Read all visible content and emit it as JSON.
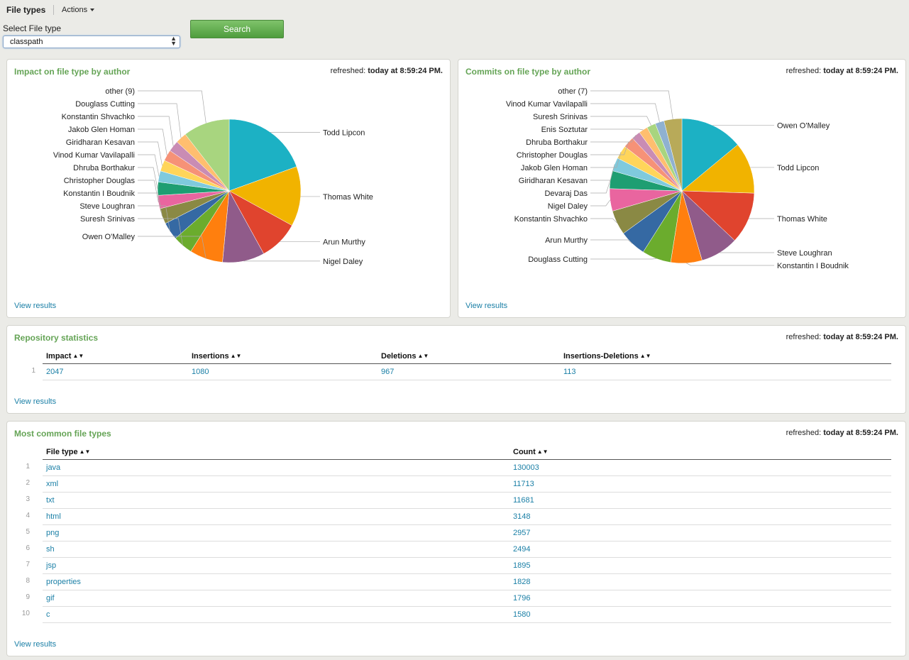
{
  "header": {
    "title": "File types",
    "actions_label": "Actions"
  },
  "filter": {
    "label": "Select File type",
    "selected": "classpath",
    "search_label": "Search"
  },
  "colors": {
    "palette": [
      "#1cb1c4",
      "#f1b300",
      "#e0442e",
      "#905b8a",
      "#ff7f0e",
      "#6bac2d",
      "#3569a3",
      "#8a8944",
      "#e9659f",
      "#1e9e72",
      "#7fcadd",
      "#ffd55a",
      "#f69277",
      "#c98cb4",
      "#ffbe6f",
      "#a8d57f",
      "#8fb1d0",
      "#b8aa59",
      "#f9aec8",
      "#58c2a1"
    ],
    "accent_green": "#65a456",
    "link": "#1a7fa6"
  },
  "impact_panel": {
    "title": "Impact on file type by author",
    "refreshed_prefix": "refreshed:",
    "refreshed_time": "today at 8:59:24 PM.",
    "view_results": "View results",
    "chart_data": {
      "type": "pie",
      "title": "Impact on file type by author",
      "slices": [
        {
          "label": "Todd Lipcon",
          "value": 19.5
        },
        {
          "label": "Thomas White",
          "value": 13.5
        },
        {
          "label": "Arun Murthy",
          "value": 9.0
        },
        {
          "label": "Nigel Daley",
          "value": 9.5
        },
        {
          "label": "Owen O'Malley",
          "value": 7.5
        },
        {
          "label": "Suresh Srinivas",
          "value": 4.5
        },
        {
          "label": "Steve Loughran",
          "value": 4.0
        },
        {
          "label": "Konstantin I Boudnik",
          "value": 3.5
        },
        {
          "label": "Christopher Douglas",
          "value": 3.0
        },
        {
          "label": "Dhruba Borthakur",
          "value": 3.0
        },
        {
          "label": "Vinod Kumar Vavilapalli",
          "value": 2.5
        },
        {
          "label": "Giridharan Kesavan",
          "value": 2.5
        },
        {
          "label": "Jakob Glen Homan",
          "value": 2.5
        },
        {
          "label": "Konstantin Shvachko",
          "value": 2.5
        },
        {
          "label": "Douglass Cutting",
          "value": 2.5
        },
        {
          "label": "other (9)",
          "value": 10.5
        }
      ]
    }
  },
  "commits_panel": {
    "title": "Commits on file type by author",
    "refreshed_prefix": "refreshed:",
    "refreshed_time": "today at 8:59:24 PM.",
    "view_results": "View results",
    "chart_data": {
      "type": "pie",
      "title": "Commits on file type by author",
      "slices": [
        {
          "label": "Owen O'Malley",
          "value": 14.0
        },
        {
          "label": "Todd Lipcon",
          "value": 11.5
        },
        {
          "label": "Thomas White",
          "value": 11.5
        },
        {
          "label": "Steve Loughran",
          "value": 8.5
        },
        {
          "label": "Konstantin I Boudnik",
          "value": 7.0
        },
        {
          "label": "Douglass Cutting",
          "value": 6.5
        },
        {
          "label": "Arun Murthy",
          "value": 6.0
        },
        {
          "label": "Konstantin Shvachko",
          "value": 5.5
        },
        {
          "label": "Nigel Daley",
          "value": 5.0
        },
        {
          "label": "Devaraj Das",
          "value": 4.0
        },
        {
          "label": "Giridharan Kesavan",
          "value": 3.0
        },
        {
          "label": "Jakob Glen Homan",
          "value": 3.0
        },
        {
          "label": "Christopher Douglas",
          "value": 2.5
        },
        {
          "label": "Dhruba Borthakur",
          "value": 2.0
        },
        {
          "label": "Enis Soztutar",
          "value": 2.0
        },
        {
          "label": "Suresh Srinivas",
          "value": 2.0
        },
        {
          "label": "Vinod Kumar Vavilapalli",
          "value": 2.0
        },
        {
          "label": "other (7)",
          "value": 4.0
        }
      ]
    }
  },
  "repo_stats": {
    "title": "Repository statistics",
    "refreshed_prefix": "refreshed:",
    "refreshed_time": "today at 8:59:24 PM.",
    "view_results": "View results",
    "columns": [
      "Impact",
      "Insertions",
      "Deletions",
      "Insertions-Deletions"
    ],
    "rows": [
      {
        "num": "1",
        "cells": [
          "2047",
          "1080",
          "967",
          "113"
        ]
      }
    ]
  },
  "file_types": {
    "title": "Most common file types",
    "refreshed_prefix": "refreshed:",
    "refreshed_time": "today at 8:59:24 PM.",
    "view_results": "View results",
    "columns": [
      "File type",
      "Count"
    ],
    "rows": [
      {
        "num": "1",
        "cells": [
          "java",
          "130003"
        ]
      },
      {
        "num": "2",
        "cells": [
          "xml",
          "11713"
        ]
      },
      {
        "num": "3",
        "cells": [
          "txt",
          "11681"
        ]
      },
      {
        "num": "4",
        "cells": [
          "html",
          "3148"
        ]
      },
      {
        "num": "5",
        "cells": [
          "png",
          "2957"
        ]
      },
      {
        "num": "6",
        "cells": [
          "sh",
          "2494"
        ]
      },
      {
        "num": "7",
        "cells": [
          "jsp",
          "1895"
        ]
      },
      {
        "num": "8",
        "cells": [
          "properties",
          "1828"
        ]
      },
      {
        "num": "9",
        "cells": [
          "gif",
          "1796"
        ]
      },
      {
        "num": "10",
        "cells": [
          "c",
          "1580"
        ]
      }
    ]
  }
}
